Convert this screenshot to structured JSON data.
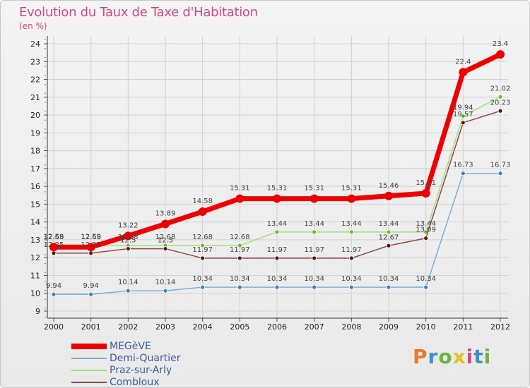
{
  "title": "Evolution du Taux de Taxe d'Habitation",
  "subtitle": "(en %)",
  "logo_text": "Proxiti",
  "logo_colors": [
    "#e8792b",
    "#3a8fd0",
    "#6cb33f",
    "#e8c21f",
    "#d04a7c",
    "#3a8fd0",
    "#6cb33f"
  ],
  "chart_data": {
    "type": "line",
    "x": [
      "2000",
      "2001",
      "2002",
      "2003",
      "2004",
      "2005",
      "2006",
      "2007",
      "2008",
      "2009",
      "2010",
      "2011",
      "2012"
    ],
    "ylim": [
      9,
      24
    ],
    "yticks": [
      9,
      10,
      11,
      12,
      13,
      14,
      15,
      16,
      17,
      18,
      19,
      20,
      21,
      22,
      23,
      24
    ],
    "grid": true,
    "legend_position": "bottom-left",
    "series": [
      {
        "name": "MEGèVE",
        "color": "#ee0000",
        "marker": "#ee0000",
        "width": 7,
        "radius": 6,
        "values": [
          12.59,
          12.59,
          13.22,
          13.89,
          14.58,
          15.31,
          15.31,
          15.31,
          15.31,
          15.46,
          15.61,
          22.4,
          23.4
        ],
        "labels": [
          "12.59",
          "12.59",
          "13.22",
          "13.89",
          "14.58",
          "15.31",
          "15.31",
          "15.31",
          "15.31",
          "15.46",
          "15.61",
          "22.4",
          "23.4"
        ]
      },
      {
        "name": "Demi-Quartier",
        "color": "#7faed6",
        "marker": "#3d82c0",
        "width": 1.5,
        "radius": 3,
        "values": [
          9.94,
          9.94,
          10.14,
          10.14,
          10.34,
          10.34,
          10.34,
          10.34,
          10.34,
          10.34,
          10.34,
          16.73,
          16.73
        ],
        "labels": [
          "9.94",
          "9.94",
          "10.14",
          "10.14",
          "10.34",
          "10.34",
          "10.34",
          "10.34",
          "10.34",
          "10.34",
          "10.34",
          "16.73",
          "16.73"
        ]
      },
      {
        "name": "Praz-sur-Arly",
        "color": "#a4e07c",
        "marker": "#62c127",
        "width": 1.5,
        "radius": 3,
        "values": [
          12.68,
          12.68,
          12.68,
          12.68,
          12.68,
          12.68,
          13.44,
          13.44,
          13.44,
          13.44,
          13.44,
          19.94,
          21.02
        ],
        "labels": [
          "12.68",
          "12.68",
          "12.68",
          "12.68",
          "12.68",
          "12.68",
          "13.44",
          "13.44",
          "13.44",
          "13.44",
          "13.44",
          "19.94",
          "21.02"
        ]
      },
      {
        "name": "Combloux",
        "color": "#8a4a4a",
        "marker": "#5a1515",
        "width": 1.5,
        "radius": 3,
        "values": [
          12.25,
          12.25,
          12.5,
          12.5,
          11.97,
          11.97,
          11.97,
          11.97,
          11.97,
          12.67,
          13.09,
          19.57,
          20.23
        ],
        "labels": [
          "12.25",
          "12.25",
          "12.5",
          "12.5",
          "11.97",
          "11.97",
          "11.97",
          "11.97",
          "11.97",
          "12.67",
          "13.09",
          "19.57",
          "20.23"
        ]
      }
    ]
  }
}
